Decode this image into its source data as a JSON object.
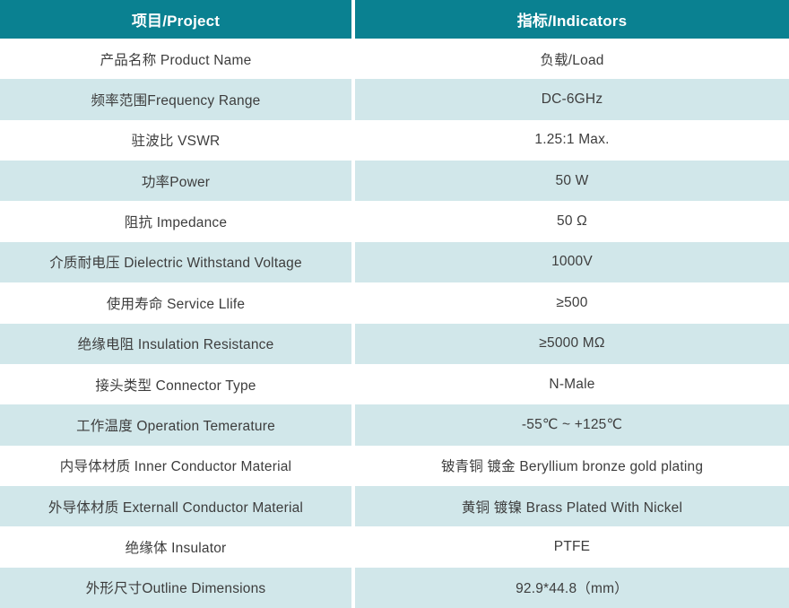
{
  "colors": {
    "header_bg": "#0a8191",
    "header_text": "#ffffff",
    "alt_row_bg": "#d1e7ea",
    "body_text": "#3d3d3d",
    "divider": "#ffffff"
  },
  "table": {
    "header": {
      "project": "项目/Project",
      "indicators": "指标/Indicators"
    },
    "rows": [
      {
        "label": "产品名称 Product Name",
        "value": "负载/Load"
      },
      {
        "label": "频率范围Frequency Range",
        "value": "DC-6GHz"
      },
      {
        "label": "驻波比 VSWR",
        "value": "1.25:1 Max."
      },
      {
        "label": "功率Power",
        "value": "50 W"
      },
      {
        "label": "阻抗 Impedance",
        "value": "50 Ω"
      },
      {
        "label": "介质耐电压 Dielectric Withstand Voltage",
        "value": "1000V"
      },
      {
        "label": "使用寿命 Service Llife",
        "value": "≥500"
      },
      {
        "label": "绝缘电阻 Insulation Resistance",
        "value": "≥5000 MΩ"
      },
      {
        "label": "接头类型 Connector Type",
        "value": "N-Male"
      },
      {
        "label": "工作温度 Operation Temerature",
        "value": "-55℃ ~ +125℃"
      },
      {
        "label": "内导体材质 Inner Conductor Material",
        "value": "铍青铜 镀金 Beryllium bronze gold plating"
      },
      {
        "label": "外导体材质 Externall Conductor Material",
        "value": "黄铜 镀镍 Brass Plated With Nickel"
      },
      {
        "label": "绝缘体 Insulator",
        "value": "PTFE"
      },
      {
        "label": "外形尺寸Outline Dimensions",
        "value": "92.9*44.8（mm）"
      }
    ]
  }
}
